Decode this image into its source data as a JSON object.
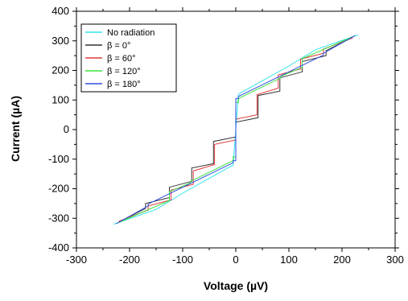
{
  "chart_data": {
    "type": "line",
    "title": "",
    "xlabel": "Voltage (µV)",
    "ylabel": "Current (µA)",
    "xlim": [
      -300,
      300
    ],
    "ylim": [
      -400,
      400
    ],
    "xticks": [
      -300,
      -200,
      -100,
      0,
      100,
      200,
      300
    ],
    "yticks": [
      -400,
      -300,
      -200,
      -100,
      0,
      100,
      200,
      300,
      400
    ],
    "grid": false,
    "legend": {
      "placement": "top-left"
    },
    "series": [
      {
        "name": "No radiation",
        "color": "#33e3ec",
        "x": [
          -230,
          -150,
          -100,
          -50,
          -5,
          0,
          5,
          50,
          100,
          150,
          230
        ],
        "y": [
          -320,
          -270,
          -215,
          -165,
          -120,
          0,
          120,
          165,
          215,
          270,
          320
        ]
      },
      {
        "name": "β = 0°",
        "color": "#333333",
        "x": [
          -220,
          -170,
          -170,
          -125,
          -125,
          -83,
          -83,
          -42,
          -42,
          0,
          0,
          0,
          42,
          42,
          83,
          83,
          125,
          125,
          170,
          170,
          220
        ],
        "y": [
          -312,
          -267,
          -250,
          -230,
          -195,
          -175,
          -130,
          -115,
          -40,
          -25,
          0,
          25,
          40,
          115,
          130,
          175,
          195,
          230,
          250,
          267,
          312
        ]
      },
      {
        "name": "β = 60°",
        "color": "#e23b3b",
        "x": [
          -220,
          -165,
          -165,
          -122,
          -122,
          -80,
          -80,
          -40,
          -40,
          0,
          0,
          0,
          40,
          40,
          80,
          80,
          122,
          122,
          165,
          165,
          220
        ],
        "y": [
          -310,
          -272,
          -258,
          -238,
          -205,
          -185,
          -140,
          -118,
          -50,
          -35,
          0,
          35,
          50,
          118,
          140,
          185,
          205,
          238,
          258,
          272,
          310
        ]
      },
      {
        "name": "β = 120°",
        "color": "#3be33b",
        "x": [
          -222,
          -125,
          -125,
          -85,
          -85,
          -5,
          -5,
          0,
          0,
          5,
          5,
          85,
          85,
          125,
          125,
          222
        ],
        "y": [
          -315,
          -240,
          -210,
          -180,
          -175,
          -105,
          -92,
          -92,
          92,
          92,
          105,
          175,
          180,
          210,
          240,
          315
        ]
      },
      {
        "name": "β = 180°",
        "color": "#2f4fe3",
        "x": [
          -225,
          -165,
          -165,
          -5,
          -5,
          0,
          0,
          5,
          5,
          165,
          165,
          225
        ],
        "y": [
          -318,
          -258,
          -252,
          -112,
          -105,
          -105,
          105,
          105,
          112,
          252,
          258,
          318
        ]
      }
    ]
  }
}
